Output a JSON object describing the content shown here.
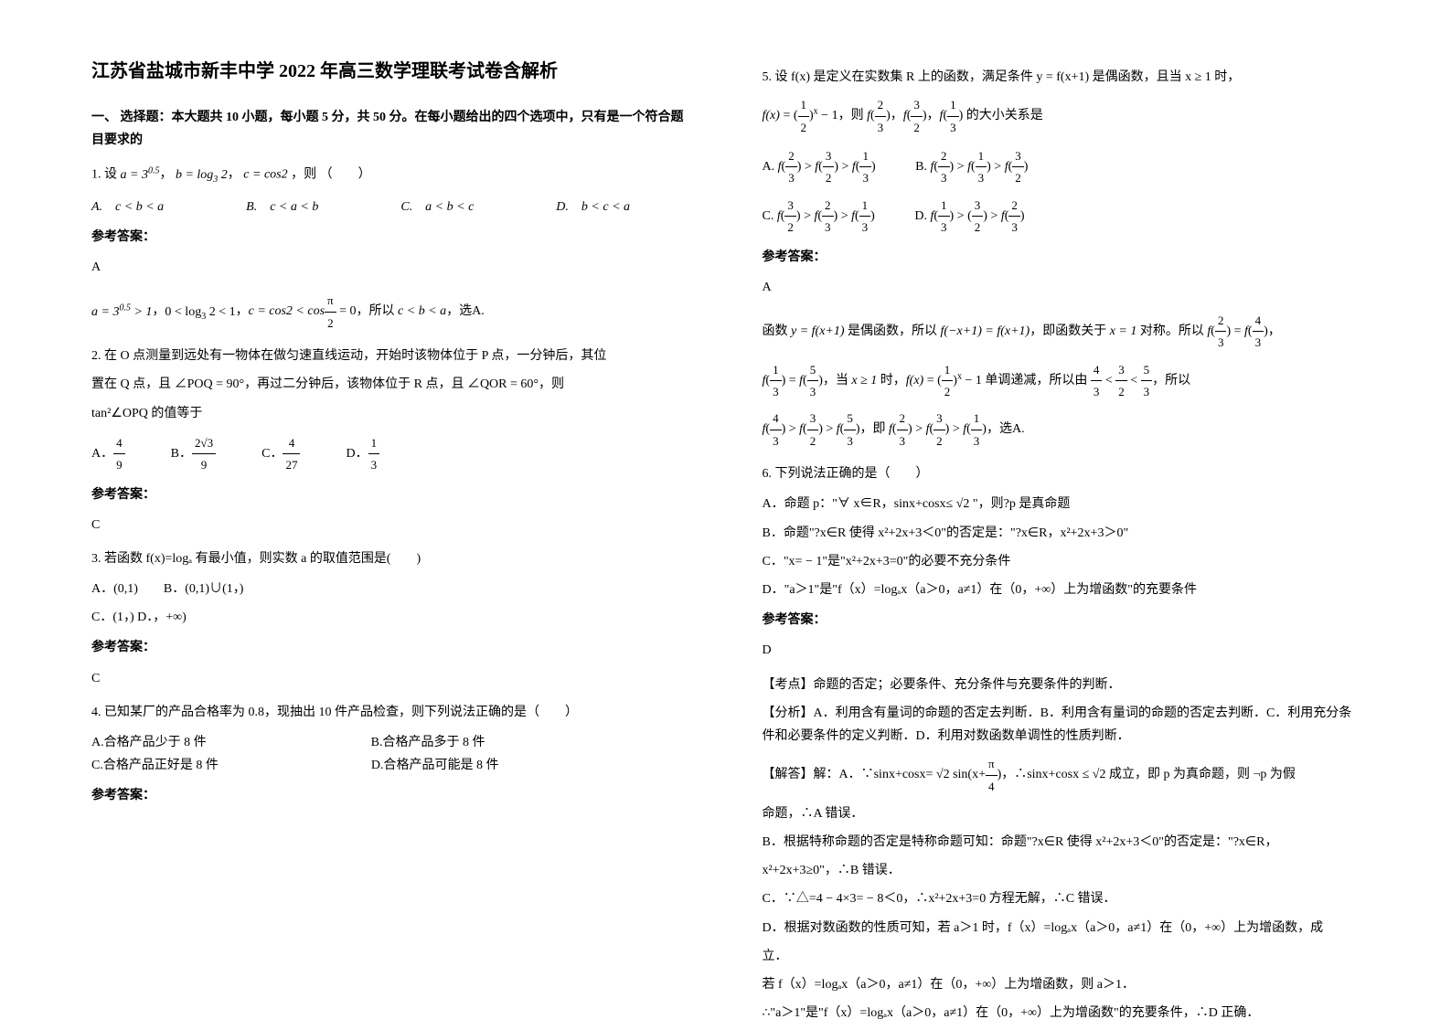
{
  "title": "江苏省盐城市新丰中学 2022 年高三数学理联考试卷含解析",
  "section_header": "一、 选择题：本大题共 10 小题，每小题 5 分，共 50 分。在每小题给出的四个选项中，只有是一个符合题目要求的",
  "q1": {
    "stem": "1. 设",
    "a_expr": "a = 3^{0.5}",
    "b_expr": "b = log₃ 2",
    "c_expr": "c = cos2",
    "tail": "，则 （　　）",
    "opt_a": "A.　c < b < a",
    "opt_b": "B.　c < a < b",
    "opt_c": "C.　a < b < c",
    "opt_d": "D.　b < c < a",
    "answer_label": "参考答案：",
    "answer": "A",
    "expl": "a = 3^{0.5} > 1，0 < log₃ 2 < 1，c = cos2 < cos(π/2) = 0，所以 c < b < a，选A."
  },
  "q2": {
    "stem_l1": "2. 在 O 点测量到远处有一物体在做匀速直线运动，开始时该物体位于 P 点，一分钟后，其位",
    "stem_l2": "置在 Q 点，且 ∠POQ = 90°，再过二分钟后，该物体位于 R 点，且 ∠QOR = 60°，则",
    "stem_l3": "tan²∠OPQ 的值等于",
    "opt_a_pre": "A．",
    "opt_b_pre": "B．",
    "opt_c_pre": "C．",
    "opt_d_pre": "D．",
    "answer_label": "参考答案：",
    "answer": "C"
  },
  "q3": {
    "stem": "3. 若函数 f(x)=logₐ 有最小值，则实数 a 的取值范围是(　　)",
    "opt_ab": "A．(0,1)　　B．(0,1)∪(1，)",
    "opt_cd": "C．(1，) D．，+∞)",
    "answer_label": "参考答案：",
    "answer": "C"
  },
  "q4": {
    "stem": "4. 已知某厂的产品合格率为 0.8，现抽出 10 件产品检查，则下列说法正确的是（　　）",
    "opt_a": "A.合格产品少于 8 件",
    "opt_b": "B.合格产品多于 8 件",
    "opt_c": "C.合格产品正好是 8 件",
    "opt_d": "D.合格产品可能是 8 件",
    "answer_label": "参考答案："
  },
  "q5": {
    "stem_l1": "5. 设 f(x) 是定义在实数集 R 上的函数，满足条件 y = f(x+1) 是偶函数，且当 x ≥ 1 时，",
    "stem_l2_pre": "f(x) = (",
    "stem_l2_mid1": ")ˣ − 1，则 f(",
    "stem_l2_mid2": ")，f(",
    "stem_l2_mid3": ")，f(",
    "stem_l2_tail": ") 的大小关系是",
    "opt_a_pre": "A. f(",
    "opt_mid1": ") > f(",
    "opt_mid2": ") > f(",
    "opt_tail": ")",
    "opt_b_pre": "B. f(",
    "opt_c_pre": "C. f(",
    "opt_d_pre": "D. f(",
    "opt_d_mid": ") > (",
    "answer_label": "参考答案：",
    "answer": "A",
    "expl_l1_pre": "函数 y = f(x+1) 是偶函数，所以 f(−x+1) = f(x+1)，即函数关于 x = 1 对称。所以 f(",
    "expl_l1_mid": ") = f(",
    "expl_l1_tail": ")，",
    "expl_l2_pre": "f(",
    "expl_l2_mid1": ") = f(",
    "expl_l2_mid2": ")，当 x ≥ 1 时，f(x) = (",
    "expl_l2_mid3": ")ˣ − 1 单调递减，所以由 ",
    "expl_l2_lt": " < ",
    "expl_l2_tail": "，所以",
    "expl_l3_pre": "f(",
    "expl_l3_mid1": ") > f(",
    "expl_l3_mid2": ") > f(",
    "expl_l3_mid3": ")，即 f(",
    "expl_l3_tail": ")，选A."
  },
  "q6": {
    "stem": "6. 下列说法正确的是（　　）",
    "opt_a": "A．命题 p：\"∀ x∈R，sinx+cosx≤ √2 \"，则?p 是真命题",
    "opt_b": "B．命题\"?x∈R 使得 x²+2x+3＜0\"的否定是：\"?x∈R，x²+2x+3＞0\"",
    "opt_c": "C．\"x= − 1\"是\"x²+2x+3=0\"的必要不充分条件",
    "opt_d": "D．\"a＞1\"是\"f（x）=logₐx（a＞0，a≠1）在（0，+∞）上为增函数\"的充要条件",
    "answer_label": "参考答案：",
    "answer": "D",
    "kaodian": "【考点】命题的否定；必要条件、充分条件与充要条件的判断．",
    "fenxi": "【分析】A．利用含有量词的命题的否定去判断．B．利用含有量词的命题的否定去判断．C．利用充分条件和必要条件的定义判断．D．利用对数函数单调性的性质判断．",
    "jieda_a_pre": "【解答】解：A．∵sinx+cosx=",
    "jieda_a_mid": "√2 sin(x+",
    "jieda_a_mid2": ")，∴sinx+cosx ≤ √2 成立，即 p 为真命题，则 ¬p 为假",
    "jieda_a_tail": "命题，∴A 错误．",
    "jieda_b_l1": "B．根据特称命题的否定是特称命题可知：命题\"?x∈R 使得 x²+2x+3＜0\"的否定是：\"?x∈R，",
    "jieda_b_l2": "x²+2x+3≥0\"，∴B 错误．",
    "jieda_c": "C．∵△=4 − 4×3= − 8＜0，∴x²+2x+3=0 方程无解，∴C 错误．",
    "jieda_d_l1": "D．根据对数函数的性质可知，若 a＞1 时，f（x）=logₐx（a＞0，a≠1）在（0，+∞）上为增函数，成",
    "jieda_d_l2": "立．",
    "jieda_d_l3": "若 f（x）=logₐx（a＞0，a≠1）在（0，+∞）上为增函数，则 a＞1．",
    "jieda_d_l4": "∴\"a＞1\"是\"f（x）=logₐx（a＞0，a≠1）在（0，+∞）上为增函数\"的充要条件，∴D 正确．"
  }
}
